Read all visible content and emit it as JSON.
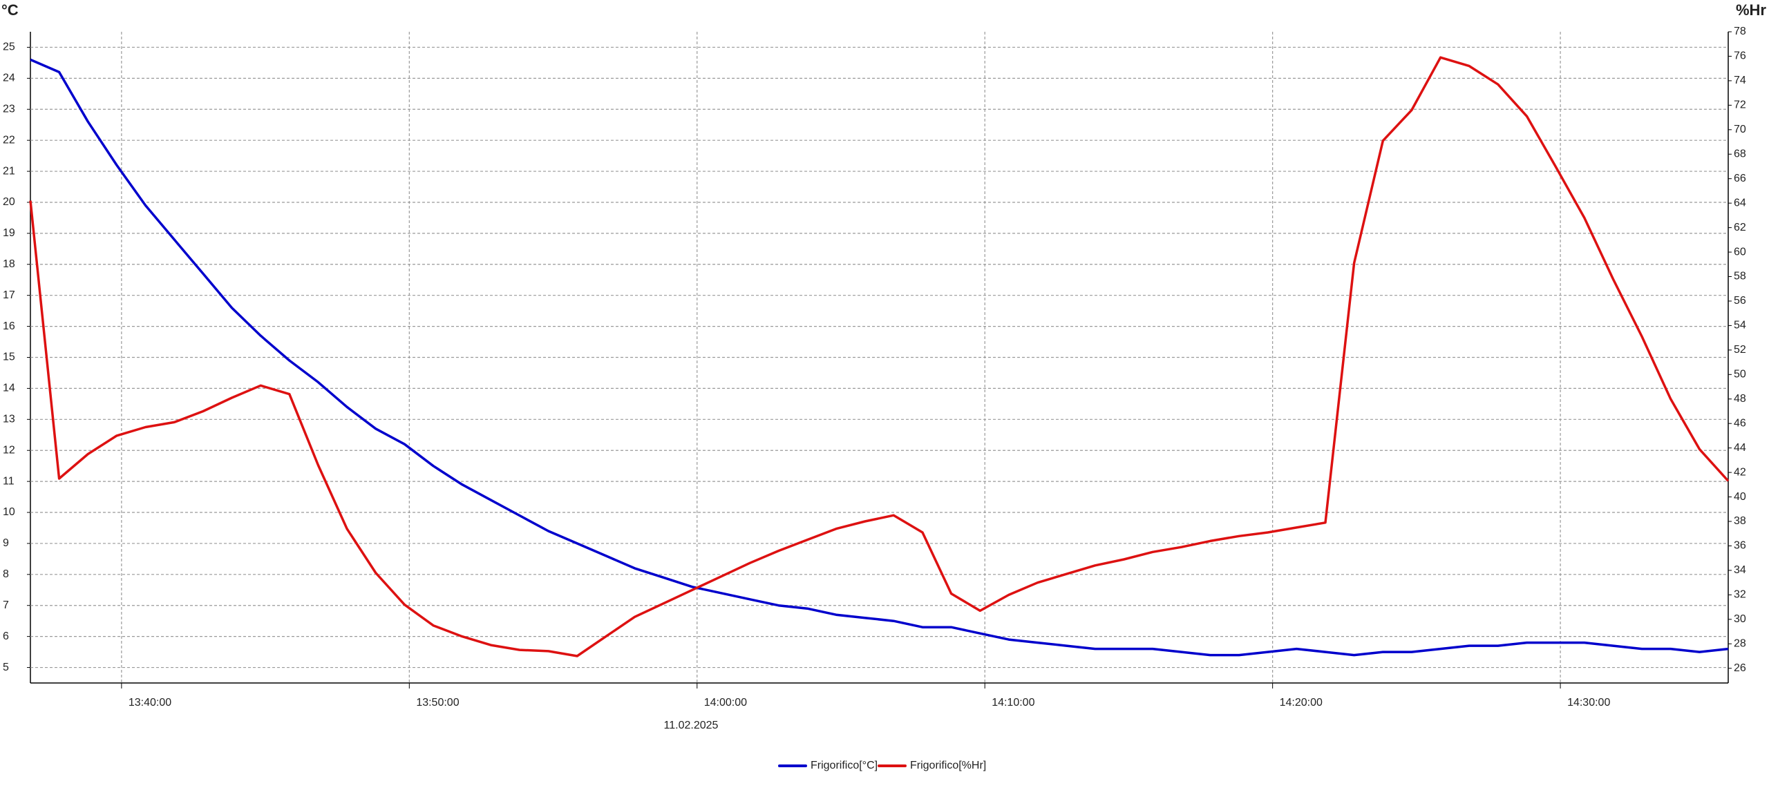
{
  "chart_data": {
    "type": "line",
    "y_label": "°C",
    "y2_label": "%Hr",
    "date_label": "11.02.2025",
    "x": [
      "13:36:50",
      "13:37:50",
      "13:38:50",
      "13:39:50",
      "13:40:50",
      "13:41:50",
      "13:42:50",
      "13:43:50",
      "13:44:50",
      "13:45:50",
      "13:46:50",
      "13:47:50",
      "13:48:50",
      "13:49:50",
      "13:50:50",
      "13:51:50",
      "13:52:50",
      "13:53:50",
      "13:54:50",
      "13:55:50",
      "13:56:50",
      "13:57:50",
      "13:58:50",
      "13:59:50",
      "14:00:50",
      "14:01:50",
      "14:02:50",
      "14:03:50",
      "14:04:50",
      "14:05:50",
      "14:06:50",
      "14:07:50",
      "14:08:50",
      "14:09:50",
      "14:10:50",
      "14:11:50",
      "14:12:50",
      "14:13:50",
      "14:14:50",
      "14:15:50",
      "14:16:50",
      "14:17:50",
      "14:18:50",
      "14:19:50",
      "14:20:50",
      "14:21:50",
      "14:22:50",
      "14:23:50",
      "14:24:50",
      "14:25:50",
      "14:26:50",
      "14:27:50",
      "14:28:50",
      "14:29:50",
      "14:30:50",
      "14:31:50",
      "14:32:50",
      "14:33:50",
      "14:34:50",
      "14:35:50"
    ],
    "series": [
      {
        "name": "Frigorifico[°C]",
        "color": "#0000cc",
        "values": [
          24.6,
          24.2,
          22.6,
          21.2,
          19.9,
          18.8,
          17.7,
          16.6,
          15.7,
          14.9,
          14.2,
          13.4,
          12.7,
          12.2,
          11.5,
          10.9,
          10.4,
          9.9,
          9.4,
          9.0,
          8.6,
          8.2,
          7.9,
          7.6,
          7.4,
          7.2,
          7.0,
          6.9,
          6.7,
          6.6,
          6.5,
          6.3,
          6.3,
          6.1,
          5.9,
          5.8,
          5.7,
          5.6,
          5.6,
          5.6,
          5.5,
          5.4,
          5.4,
          5.5,
          5.6,
          5.5,
          5.4,
          5.5,
          5.5,
          5.6,
          5.7,
          5.7,
          5.8,
          5.8,
          5.8,
          5.7,
          5.6,
          5.6,
          5.5,
          5.6
        ]
      },
      {
        "name": "Frigorifico[%Hr]",
        "color": "#dd1111",
        "axis": "y2",
        "values": [
          64.2,
          41.5,
          43.5,
          45.0,
          45.7,
          46.1,
          47.0,
          48.1,
          49.1,
          48.4,
          42.6,
          37.4,
          33.8,
          31.2,
          29.5,
          28.6,
          27.9,
          27.5,
          27.4,
          27.0,
          28.6,
          30.2,
          31.3,
          32.4,
          33.5,
          34.6,
          35.6,
          36.5,
          37.4,
          38.0,
          38.5,
          37.1,
          32.1,
          30.7,
          32.0,
          33.0,
          33.7,
          34.4,
          34.9,
          35.5,
          35.9,
          36.4,
          36.8,
          37.1,
          37.5,
          37.9,
          59.1,
          69.1,
          71.6,
          75.9,
          75.2,
          73.7,
          71.1,
          67.0,
          62.8,
          57.8,
          53.1,
          48.0,
          43.9,
          41.3
        ]
      }
    ],
    "xlim": [
      "13:36:50",
      "14:35:50"
    ],
    "xticks": [
      "13:40:00",
      "13:50:00",
      "14:00:00",
      "14:10:00",
      "14:20:00",
      "14:30:00"
    ],
    "ylim": [
      4.5,
      25.5
    ],
    "yticks": [
      5,
      6,
      7,
      8,
      9,
      10,
      11,
      12,
      13,
      14,
      15,
      16,
      17,
      18,
      19,
      20,
      21,
      22,
      23,
      24,
      25
    ],
    "y2lim": [
      24.8,
      78
    ],
    "y2ticks": [
      26,
      28,
      30,
      32,
      34,
      36,
      38,
      40,
      42,
      44,
      46,
      48,
      50,
      52,
      54,
      56,
      58,
      60,
      62,
      64,
      66,
      68,
      70,
      72,
      74,
      76,
      78
    ],
    "grid": true,
    "legend": "bottom"
  }
}
